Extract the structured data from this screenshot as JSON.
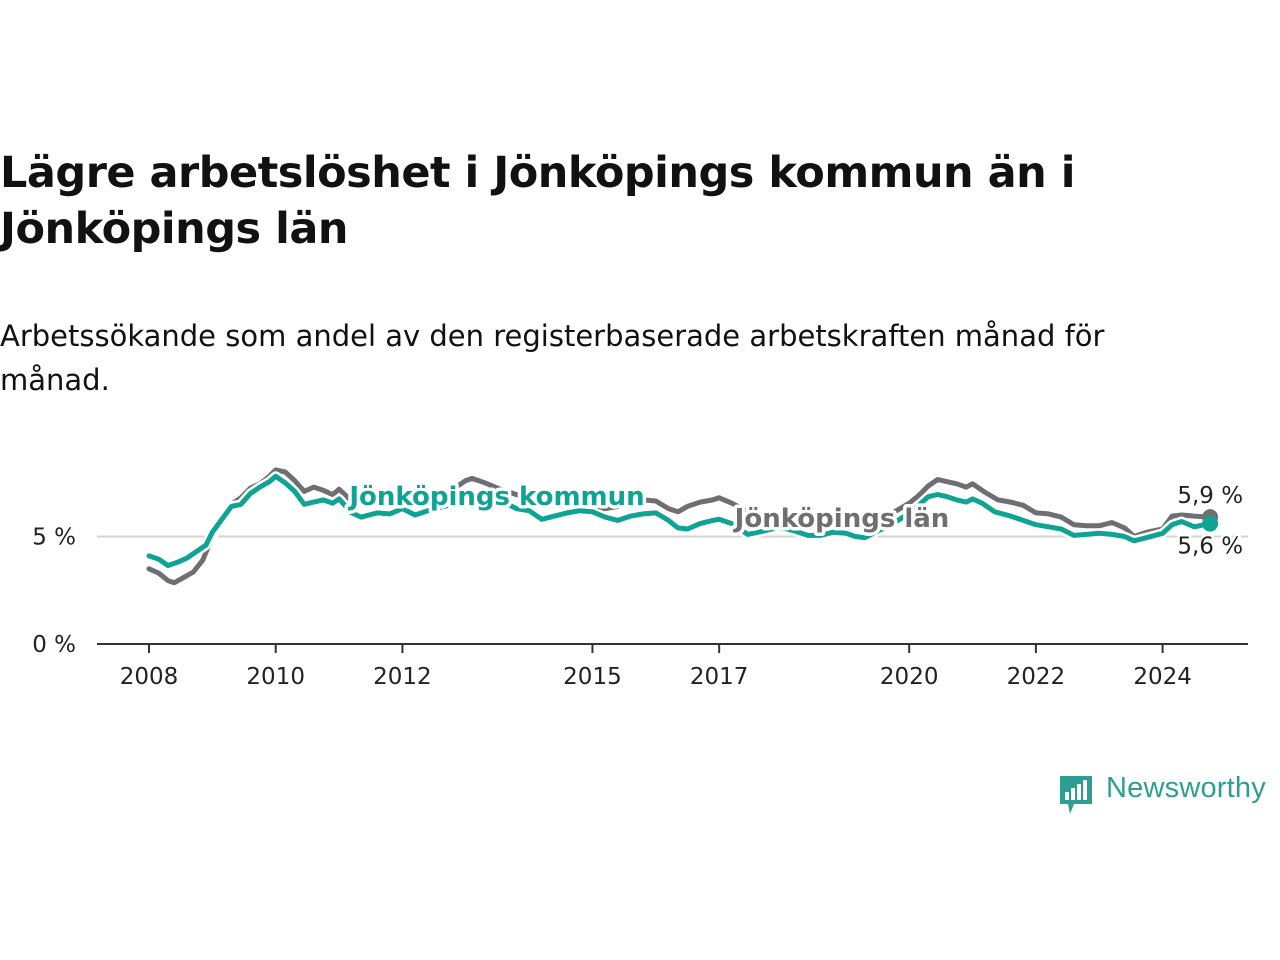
{
  "header": {
    "title": "Lägre arbetslöshet i Jönköpings kommun än i Jönköpings län",
    "subtitle": "Arbetssökande som andel av den registerbaserade arbetskraften månad för månad."
  },
  "brand": {
    "name": "Newsworthy",
    "icon": "newsworthy-chart-bubble-icon",
    "color": "#2e9e94"
  },
  "chart_data": {
    "type": "line",
    "title": "Lägre arbetslöshet i Jönköpings kommun än i Jönköpings län",
    "subtitle": "Arbetssökande som andel av den registerbaserade arbetskraften månad för månad.",
    "xlabel": "",
    "ylabel": "",
    "xlim": [
      2008,
      2024.9
    ],
    "ylim": [
      0,
      8.5
    ],
    "x_ticks": [
      {
        "value": 2008,
        "label": "2008"
      },
      {
        "value": 2010,
        "label": "2010"
      },
      {
        "value": 2012,
        "label": "2012"
      },
      {
        "value": 2015,
        "label": "2015"
      },
      {
        "value": 2017,
        "label": "2017"
      },
      {
        "value": 2020,
        "label": "2020"
      },
      {
        "value": 2022,
        "label": "2022"
      },
      {
        "value": 2024,
        "label": "2024"
      }
    ],
    "y_ticks": [
      {
        "value": 0,
        "label": "0 %"
      },
      {
        "value": 5,
        "label": "5 %"
      }
    ],
    "grid": "horizontal",
    "series": [
      {
        "name": "Jönköpings län",
        "label": "Jönköpings län",
        "color": "#6e6e73",
        "end_label": "5,9 %",
        "points": [
          [
            2008.0,
            3.5
          ],
          [
            2008.15,
            3.3
          ],
          [
            2008.3,
            2.95
          ],
          [
            2008.4,
            2.85
          ],
          [
            2008.55,
            3.1
          ],
          [
            2008.7,
            3.35
          ],
          [
            2008.85,
            3.9
          ],
          [
            2009.0,
            5.0
          ],
          [
            2009.15,
            5.9
          ],
          [
            2009.3,
            6.5
          ],
          [
            2009.45,
            6.8
          ],
          [
            2009.6,
            7.25
          ],
          [
            2009.75,
            7.45
          ],
          [
            2009.9,
            7.8
          ],
          [
            2010.0,
            8.1
          ],
          [
            2010.15,
            8.0
          ],
          [
            2010.3,
            7.6
          ],
          [
            2010.45,
            7.1
          ],
          [
            2010.6,
            7.3
          ],
          [
            2010.75,
            7.15
          ],
          [
            2010.9,
            6.95
          ],
          [
            2011.0,
            7.2
          ],
          [
            2011.2,
            6.65
          ],
          [
            2011.4,
            6.5
          ],
          [
            2011.6,
            6.55
          ],
          [
            2011.8,
            6.7
          ],
          [
            2012.0,
            6.75
          ],
          [
            2012.2,
            6.55
          ],
          [
            2012.5,
            6.75
          ],
          [
            2012.8,
            7.2
          ],
          [
            2013.0,
            7.6
          ],
          [
            2013.1,
            7.7
          ],
          [
            2013.3,
            7.5
          ],
          [
            2013.5,
            7.25
          ],
          [
            2013.8,
            6.95
          ],
          [
            2014.0,
            6.8
          ],
          [
            2014.2,
            6.7
          ],
          [
            2014.4,
            6.5
          ],
          [
            2014.6,
            6.4
          ],
          [
            2014.8,
            6.3
          ],
          [
            2015.0,
            6.4
          ],
          [
            2015.2,
            6.3
          ],
          [
            2015.4,
            6.4
          ],
          [
            2015.6,
            6.55
          ],
          [
            2015.8,
            6.7
          ],
          [
            2016.0,
            6.65
          ],
          [
            2016.2,
            6.3
          ],
          [
            2016.35,
            6.15
          ],
          [
            2016.5,
            6.4
          ],
          [
            2016.7,
            6.6
          ],
          [
            2016.9,
            6.7
          ],
          [
            2017.0,
            6.8
          ],
          [
            2017.2,
            6.55
          ],
          [
            2017.5,
            6.1
          ],
          [
            2017.8,
            5.95
          ],
          [
            2018.0,
            6.0
          ],
          [
            2018.3,
            5.85
          ],
          [
            2018.6,
            5.55
          ],
          [
            2018.9,
            5.6
          ],
          [
            2019.0,
            5.7
          ],
          [
            2019.2,
            5.65
          ],
          [
            2019.4,
            5.6
          ],
          [
            2019.6,
            5.8
          ],
          [
            2019.8,
            6.2
          ],
          [
            2020.0,
            6.55
          ],
          [
            2020.15,
            6.9
          ],
          [
            2020.3,
            7.35
          ],
          [
            2020.45,
            7.65
          ],
          [
            2020.6,
            7.55
          ],
          [
            2020.75,
            7.45
          ],
          [
            2020.9,
            7.3
          ],
          [
            2021.0,
            7.45
          ],
          [
            2021.2,
            7.05
          ],
          [
            2021.4,
            6.7
          ],
          [
            2021.6,
            6.6
          ],
          [
            2021.8,
            6.45
          ],
          [
            2022.0,
            6.1
          ],
          [
            2022.2,
            6.05
          ],
          [
            2022.4,
            5.9
          ],
          [
            2022.6,
            5.55
          ],
          [
            2022.8,
            5.5
          ],
          [
            2023.0,
            5.5
          ],
          [
            2023.2,
            5.65
          ],
          [
            2023.4,
            5.4
          ],
          [
            2023.55,
            5.0
          ],
          [
            2023.75,
            5.2
          ],
          [
            2024.0,
            5.35
          ],
          [
            2024.15,
            5.95
          ],
          [
            2024.3,
            6.0
          ],
          [
            2024.5,
            5.95
          ],
          [
            2024.75,
            5.9
          ]
        ]
      },
      {
        "name": "Jönköpings kommun",
        "label": "Jönköpings kommun",
        "color": "#0fa394",
        "end_label": "5,6 %",
        "points": [
          [
            2008.0,
            4.1
          ],
          [
            2008.15,
            3.95
          ],
          [
            2008.3,
            3.65
          ],
          [
            2008.45,
            3.8
          ],
          [
            2008.6,
            4.0
          ],
          [
            2008.75,
            4.3
          ],
          [
            2008.9,
            4.6
          ],
          [
            2009.0,
            5.2
          ],
          [
            2009.15,
            5.8
          ],
          [
            2009.3,
            6.4
          ],
          [
            2009.45,
            6.5
          ],
          [
            2009.6,
            7.0
          ],
          [
            2009.75,
            7.3
          ],
          [
            2009.9,
            7.55
          ],
          [
            2010.0,
            7.8
          ],
          [
            2010.15,
            7.5
          ],
          [
            2010.3,
            7.1
          ],
          [
            2010.45,
            6.5
          ],
          [
            2010.6,
            6.6
          ],
          [
            2010.75,
            6.7
          ],
          [
            2010.9,
            6.55
          ],
          [
            2011.0,
            6.75
          ],
          [
            2011.2,
            6.1
          ],
          [
            2011.35,
            5.9
          ],
          [
            2011.6,
            6.1
          ],
          [
            2011.8,
            6.05
          ],
          [
            2012.0,
            6.3
          ],
          [
            2012.2,
            6.0
          ],
          [
            2012.5,
            6.3
          ],
          [
            2012.8,
            6.5
          ],
          [
            2013.0,
            6.8
          ],
          [
            2013.3,
            6.7
          ],
          [
            2013.6,
            6.6
          ],
          [
            2013.8,
            6.3
          ],
          [
            2014.0,
            6.2
          ],
          [
            2014.2,
            5.8
          ],
          [
            2014.4,
            5.95
          ],
          [
            2014.6,
            6.1
          ],
          [
            2014.8,
            6.2
          ],
          [
            2015.0,
            6.15
          ],
          [
            2015.2,
            5.9
          ],
          [
            2015.4,
            5.75
          ],
          [
            2015.6,
            5.95
          ],
          [
            2015.8,
            6.05
          ],
          [
            2016.0,
            6.1
          ],
          [
            2016.2,
            5.75
          ],
          [
            2016.35,
            5.4
          ],
          [
            2016.5,
            5.35
          ],
          [
            2016.7,
            5.6
          ],
          [
            2016.9,
            5.75
          ],
          [
            2017.0,
            5.8
          ],
          [
            2017.2,
            5.6
          ],
          [
            2017.45,
            5.1
          ],
          [
            2017.7,
            5.25
          ],
          [
            2017.9,
            5.4
          ],
          [
            2018.0,
            5.4
          ],
          [
            2018.2,
            5.25
          ],
          [
            2018.4,
            5.05
          ],
          [
            2018.6,
            5.05
          ],
          [
            2018.8,
            5.2
          ],
          [
            2019.0,
            5.15
          ],
          [
            2019.15,
            5.0
          ],
          [
            2019.3,
            4.95
          ],
          [
            2019.5,
            5.25
          ],
          [
            2019.75,
            5.6
          ],
          [
            2020.0,
            6.1
          ],
          [
            2020.15,
            6.45
          ],
          [
            2020.3,
            6.85
          ],
          [
            2020.45,
            6.95
          ],
          [
            2020.6,
            6.85
          ],
          [
            2020.75,
            6.7
          ],
          [
            2020.9,
            6.6
          ],
          [
            2021.0,
            6.75
          ],
          [
            2021.15,
            6.55
          ],
          [
            2021.35,
            6.15
          ],
          [
            2021.6,
            5.95
          ],
          [
            2021.8,
            5.75
          ],
          [
            2022.0,
            5.55
          ],
          [
            2022.2,
            5.45
          ],
          [
            2022.4,
            5.35
          ],
          [
            2022.6,
            5.05
          ],
          [
            2022.8,
            5.1
          ],
          [
            2023.0,
            5.15
          ],
          [
            2023.2,
            5.1
          ],
          [
            2023.4,
            5.0
          ],
          [
            2023.55,
            4.8
          ],
          [
            2023.75,
            4.95
          ],
          [
            2024.0,
            5.15
          ],
          [
            2024.15,
            5.55
          ],
          [
            2024.3,
            5.7
          ],
          [
            2024.5,
            5.45
          ],
          [
            2024.75,
            5.6
          ]
        ]
      }
    ]
  }
}
